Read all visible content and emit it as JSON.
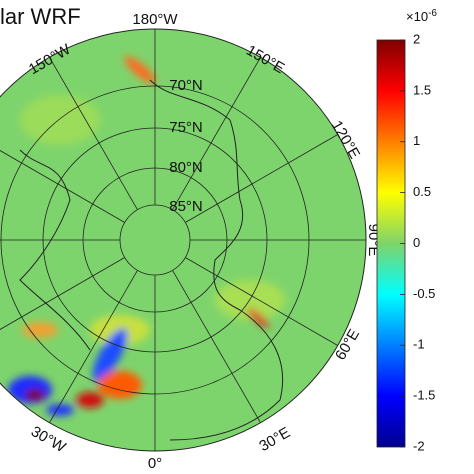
{
  "map": {
    "title": "lar WRF",
    "longitude_labels": [
      "180°W",
      "150°W",
      "150°E",
      "120°E",
      "90°E",
      "60°E",
      "30°E",
      "0°",
      "30°W"
    ],
    "latitude_labels": [
      "70°N",
      "75°N",
      "80°N",
      "85°N"
    ]
  },
  "colorbar": {
    "exponent": "×10",
    "exponent_power": "-6",
    "lim": [
      -2,
      2
    ],
    "ticks": [
      2,
      1.5,
      1,
      0.5,
      0,
      -0.5,
      -1,
      -1.5,
      -2
    ]
  }
}
